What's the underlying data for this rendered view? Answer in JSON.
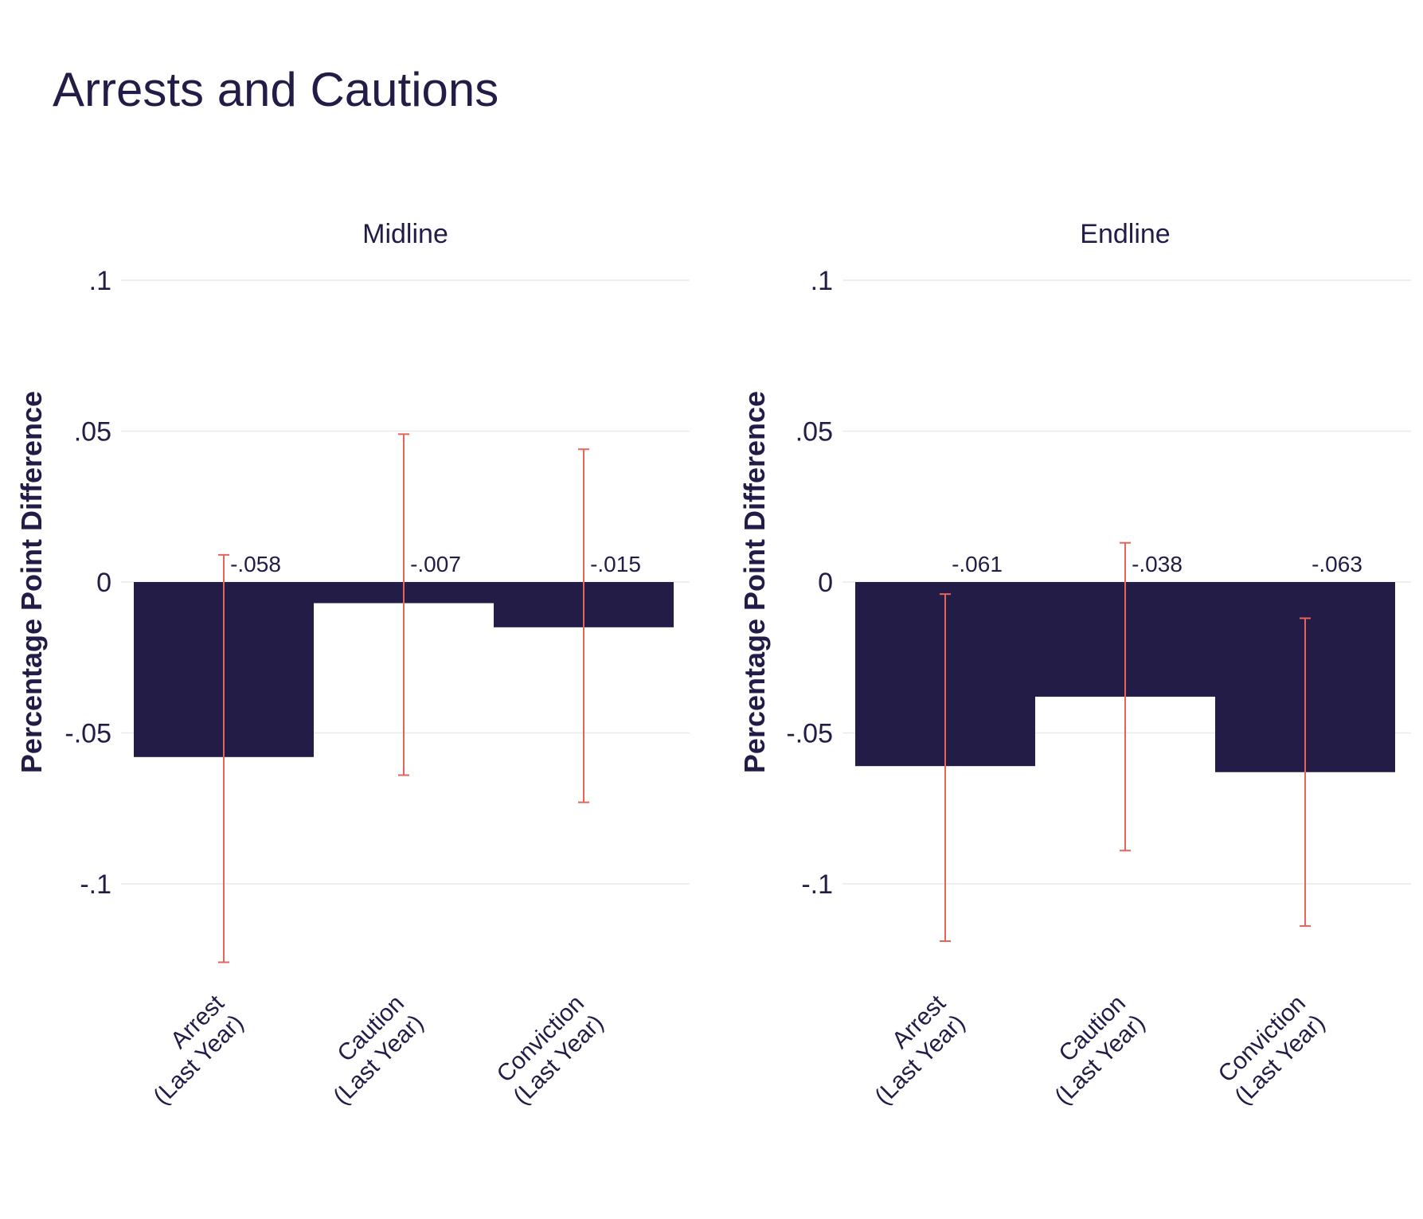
{
  "title": "Arrests and Cautions",
  "colors": {
    "bar": "#231c47",
    "error": "#e8635a",
    "grid": "#e9e9e9",
    "text": "#231c47"
  },
  "chart_data": [
    {
      "type": "bar",
      "facet": "Midline",
      "ylabel": "Percentage Point Difference",
      "ylim": [
        -0.13,
        0.1
      ],
      "yticks": [
        0.1,
        0.05,
        0,
        -0.05,
        -0.1
      ],
      "ytick_labels": [
        ".1",
        ".05",
        "0",
        "-.05",
        "-.1"
      ],
      "categories": [
        [
          "Arrest",
          "(Last Year)"
        ],
        [
          "Caution",
          "(Last Year)"
        ],
        [
          "Conviction",
          "(Last Year)"
        ]
      ],
      "values": [
        -0.058,
        -0.007,
        -0.015
      ],
      "value_labels": [
        "-.058",
        "-.007",
        "-.015"
      ],
      "ci_low": [
        -0.126,
        -0.064,
        -0.073
      ],
      "ci_high": [
        0.009,
        0.049,
        0.044
      ],
      "grid": true
    },
    {
      "type": "bar",
      "facet": "Endline",
      "ylabel": "Percentage Point Difference",
      "ylim": [
        -0.13,
        0.1
      ],
      "yticks": [
        0.1,
        0.05,
        0,
        -0.05,
        -0.1
      ],
      "ytick_labels": [
        ".1",
        ".05",
        "0",
        "-.05",
        "-.1"
      ],
      "categories": [
        [
          "Arrest",
          "(Last Year)"
        ],
        [
          "Caution",
          "(Last Year)"
        ],
        [
          "Conviction",
          "(Last Year)"
        ]
      ],
      "values": [
        -0.061,
        -0.038,
        -0.063
      ],
      "value_labels": [
        "-.061",
        "-.038",
        "-.063"
      ],
      "ci_low": [
        -0.119,
        -0.089,
        -0.114
      ],
      "ci_high": [
        -0.004,
        0.013,
        -0.012
      ],
      "grid": true
    }
  ]
}
